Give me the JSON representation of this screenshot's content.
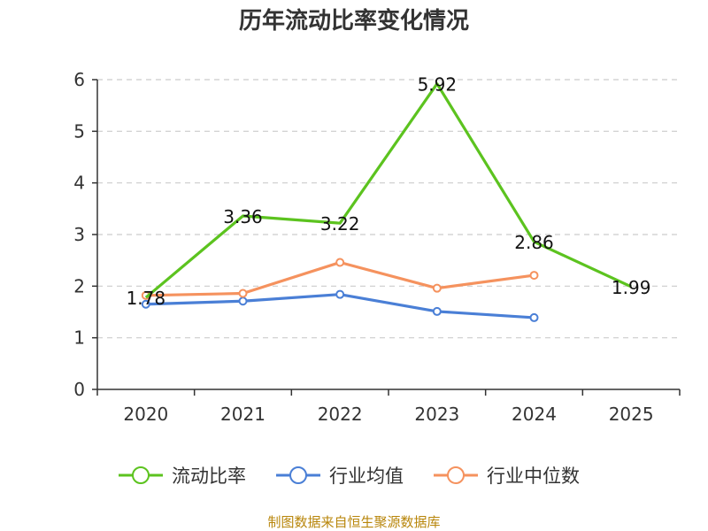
{
  "chart_data": {
    "type": "line",
    "title": "历年流动比率变化情况",
    "categories": [
      "2020",
      "2021",
      "2022",
      "2023",
      "2024",
      "2025"
    ],
    "ylim": [
      0,
      6
    ],
    "yticks": [
      0,
      1,
      2,
      3,
      4,
      5,
      6
    ],
    "grid": true,
    "legend_position": "bottom",
    "series": [
      {
        "name": "流动比率",
        "color": "#5cc31f",
        "values": [
          1.78,
          3.36,
          3.22,
          5.92,
          2.86,
          1.99
        ],
        "labels": [
          "1.78",
          "3.36",
          "3.22",
          "5.92",
          "2.86",
          "1.99"
        ]
      },
      {
        "name": "行业均值",
        "color": "#4a7fd6",
        "values": [
          1.65,
          1.71,
          1.84,
          1.51,
          1.39,
          null
        ]
      },
      {
        "name": "行业中位数",
        "color": "#f5925e",
        "values": [
          1.82,
          1.86,
          2.46,
          1.96,
          2.21,
          null
        ]
      }
    ]
  },
  "source_text": "制图数据来自恒生聚源数据库"
}
